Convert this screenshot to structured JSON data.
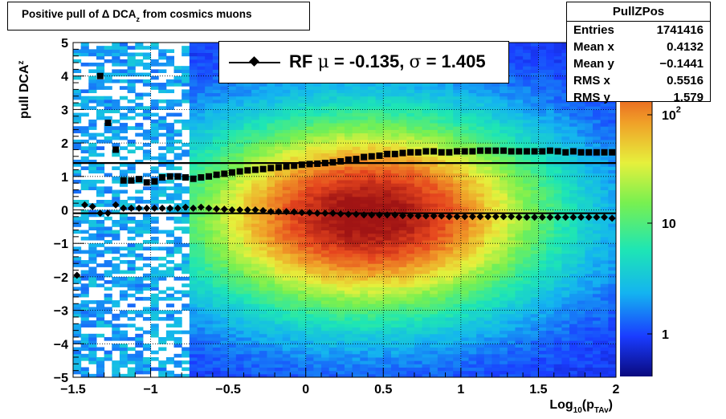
{
  "chart_data": {
    "type": "heatmap",
    "title_main": "Positive pull of Δ DCA",
    "title_sub": "z",
    "title_rest": " from cosmics muons",
    "xlabel_main": "Log",
    "xlabel_sub": "10",
    "xlabel_mid": "(p",
    "xlabel_sub2": "TAv",
    "xlabel_end": ")",
    "ylabel_main": "pull DCA",
    "ylabel_sub": "z",
    "xlim": [
      -1.5,
      2
    ],
    "ylim": [
      -5,
      5
    ],
    "x_ticks": [
      "−1.5",
      "−1",
      "−0.5",
      "0",
      "0.5",
      "1",
      "1.5",
      "2"
    ],
    "y_ticks": [
      "−5",
      "−4",
      "−3",
      "−2",
      "−1",
      "0",
      "1",
      "2",
      "3",
      "4",
      "5"
    ],
    "grid": true,
    "color_scale": {
      "type": "log",
      "labels": [
        "1",
        "10",
        "10"
      ],
      "label_sup": "2"
    },
    "fit_lines": [
      1.4,
      -0.1
    ],
    "series": [
      {
        "marker": "diamond",
        "x": [
          -1.475,
          -1.425,
          -1.375,
          -1.325,
          -1.275,
          -1.225,
          -1.175,
          -1.125,
          -1.075,
          -1.025,
          -0.975,
          -0.925,
          -0.875,
          -0.825,
          -0.775,
          -0.725,
          -0.675,
          -0.625,
          -0.575,
          -0.525,
          -0.475,
          -0.425,
          -0.375,
          -0.325,
          -0.275,
          -0.225,
          -0.175,
          -0.125,
          -0.075,
          -0.025,
          0.025,
          0.075,
          0.125,
          0.175,
          0.225,
          0.275,
          0.325,
          0.375,
          0.425,
          0.475,
          0.525,
          0.575,
          0.625,
          0.675,
          0.725,
          0.775,
          0.825,
          0.875,
          0.925,
          0.975,
          1.025,
          1.075,
          1.125,
          1.175,
          1.225,
          1.275,
          1.325,
          1.375,
          1.425,
          1.475,
          1.525,
          1.575,
          1.625,
          1.675,
          1.725,
          1.775,
          1.825,
          1.875,
          1.925,
          1.975
        ],
        "y": [
          -1.95,
          0.15,
          0.1,
          -0.1,
          -0.1,
          0.15,
          0.05,
          0.05,
          0.05,
          0.05,
          0.05,
          0.05,
          0.05,
          0.05,
          0.08,
          0.05,
          0.08,
          0.05,
          0.03,
          0.02,
          0.0,
          0.0,
          0.0,
          0.0,
          -0.02,
          -0.05,
          -0.05,
          -0.05,
          -0.06,
          -0.08,
          -0.08,
          -0.1,
          -0.1,
          -0.1,
          -0.12,
          -0.13,
          -0.13,
          -0.15,
          -0.15,
          -0.15,
          -0.15,
          -0.15,
          -0.17,
          -0.17,
          -0.18,
          -0.18,
          -0.18,
          -0.18,
          -0.2,
          -0.2,
          -0.2,
          -0.2,
          -0.2,
          -0.2,
          -0.2,
          -0.2,
          -0.2,
          -0.22,
          -0.22,
          -0.22,
          -0.22,
          -0.22,
          -0.22,
          -0.22,
          -0.22,
          -0.22,
          -0.22,
          -0.22,
          -0.22,
          -0.25
        ]
      },
      {
        "marker": "square",
        "x": [
          -1.325,
          -1.275,
          -1.225,
          -1.175,
          -1.125,
          -1.075,
          -1.025,
          -0.975,
          -0.925,
          -0.875,
          -0.825,
          -0.775,
          -0.725,
          -0.675,
          -0.625,
          -0.575,
          -0.525,
          -0.475,
          -0.425,
          -0.375,
          -0.325,
          -0.275,
          -0.225,
          -0.175,
          -0.125,
          -0.075,
          -0.025,
          0.025,
          0.075,
          0.125,
          0.175,
          0.225,
          0.275,
          0.325,
          0.375,
          0.425,
          0.475,
          0.525,
          0.575,
          0.625,
          0.675,
          0.725,
          0.775,
          0.825,
          0.875,
          0.925,
          0.975,
          1.025,
          1.075,
          1.125,
          1.175,
          1.225,
          1.275,
          1.325,
          1.375,
          1.425,
          1.475,
          1.525,
          1.575,
          1.625,
          1.675,
          1.725,
          1.775,
          1.825,
          1.875,
          1.925,
          1.975
        ],
        "y": [
          4.0,
          2.6,
          1.8,
          0.88,
          0.88,
          0.92,
          0.82,
          0.85,
          0.97,
          1.0,
          1.0,
          0.97,
          0.93,
          0.97,
          1.0,
          1.05,
          1.08,
          1.12,
          1.15,
          1.18,
          1.2,
          1.22,
          1.25,
          1.27,
          1.3,
          1.32,
          1.35,
          1.37,
          1.38,
          1.4,
          1.42,
          1.45,
          1.5,
          1.52,
          1.58,
          1.6,
          1.62,
          1.67,
          1.67,
          1.7,
          1.72,
          1.72,
          1.75,
          1.75,
          1.72,
          1.72,
          1.75,
          1.75,
          1.75,
          1.77,
          1.77,
          1.77,
          1.77,
          1.75,
          1.75,
          1.75,
          1.75,
          1.75,
          1.77,
          1.75,
          1.72,
          1.75,
          1.72,
          1.72,
          1.72,
          1.72,
          1.72
        ]
      }
    ]
  },
  "legend": {
    "prefix": "RF ",
    "mu": "μ",
    "middle": " = -0.135, ",
    "sigma": "σ",
    "suffix": " =   1.405"
  },
  "stats": {
    "name": "PullZPos",
    "rows": [
      {
        "key": "Entries",
        "value": "1741416"
      },
      {
        "key": "Mean x",
        "value": "0.4132"
      },
      {
        "key": "Mean y",
        "value": "−0.1441"
      },
      {
        "key": "RMS x",
        "value": "0.5516"
      },
      {
        "key": "RMS y",
        "value": "1.579"
      }
    ]
  }
}
